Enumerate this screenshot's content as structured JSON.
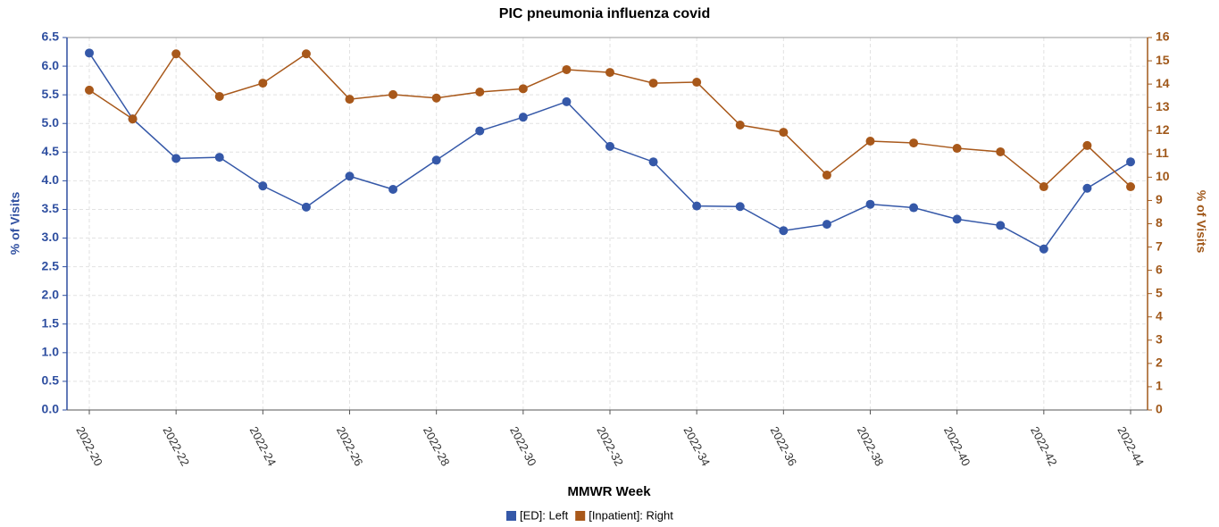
{
  "chart_data": {
    "type": "line",
    "title": "PIC pneumonia influenza covid",
    "x_label": "MMWR Week",
    "y_label": "% of Visits",
    "y2_label": "% of Visits",
    "categories": [
      "2022-20",
      null,
      "2022-22",
      null,
      "2022-24",
      null,
      "2022-26",
      null,
      "2022-28",
      null,
      "2022-30",
      null,
      "2022-32",
      null,
      "2022-34",
      null,
      "2022-36",
      null,
      "2022-38",
      null,
      "2022-40",
      null,
      "2022-42",
      null,
      "2022-44"
    ],
    "ylim": [
      0,
      6.5
    ],
    "yticks": [
      {
        "value": 0,
        "label": "0.0"
      },
      0.5,
      {
        "value": 1,
        "label": "1.0"
      },
      1.5,
      {
        "value": 2,
        "label": "2.0"
      },
      2.5,
      {
        "value": 3,
        "label": "3.0"
      },
      3.5,
      {
        "value": 4,
        "label": "4.0"
      },
      4.5,
      {
        "value": 5,
        "label": "5.0"
      },
      5.5,
      {
        "value": 6,
        "label": "6.0"
      },
      6.5
    ],
    "y2lim": [
      0,
      16
    ],
    "y2ticks": [
      0,
      1,
      2,
      3,
      4,
      5,
      6,
      7,
      8,
      9,
      10,
      11,
      12,
      13,
      14,
      15,
      16
    ],
    "grid": true,
    "series": [
      {
        "name": "[ED]: Left",
        "color": "#3558a8",
        "axis": "y",
        "values": [
          6.23,
          5.08,
          4.39,
          4.41,
          3.91,
          3.54,
          4.08,
          3.85,
          4.36,
          4.87,
          5.11,
          5.38,
          4.6,
          4.33,
          3.56,
          3.55,
          3.13,
          3.24,
          3.59,
          3.53,
          3.33,
          3.22,
          2.81,
          3.87,
          4.33
        ]
      },
      {
        "name": "[Inpatient]: Right",
        "color": "#a8581a",
        "axis": "y2",
        "values": [
          13.74,
          12.5,
          15.3,
          13.47,
          14.04,
          15.3,
          13.35,
          13.55,
          13.4,
          13.66,
          13.8,
          14.62,
          14.5,
          14.04,
          14.08,
          12.24,
          11.93,
          10.09,
          11.55,
          11.47,
          11.24,
          11.09,
          9.59,
          11.36,
          9.59
        ]
      }
    ]
  }
}
